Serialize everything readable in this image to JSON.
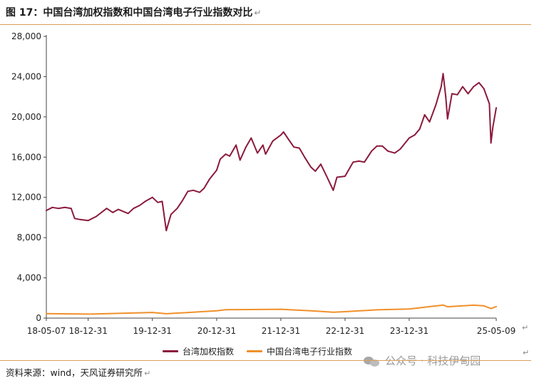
{
  "title": "图 17：中国台湾加权指数和中国台湾电子行业指数对比",
  "para_mark": "↵",
  "source": "资料来源：wind，天风证券研究所",
  "watermark": "公众号 · 科技伊甸园",
  "colors": {
    "accent_rule": "#d9a05b",
    "series1": "#8b1a3c",
    "series2": "#f0902a",
    "axis": "#444444"
  },
  "chart_data": {
    "type": "line",
    "title": "图 17：中国台湾加权指数和中国台湾电子行业指数对比",
    "xlabel": "",
    "ylabel": "",
    "ylim": [
      0,
      28000
    ],
    "yticks": [
      0,
      4000,
      8000,
      12000,
      16000,
      20000,
      24000,
      28000
    ],
    "ytick_labels": [
      "0",
      "4,000",
      "8,000",
      "12,000",
      "16,000",
      "20,000",
      "24,000",
      "28,000"
    ],
    "xlim": [
      "2018-05-07",
      "2025-05-09"
    ],
    "xticks": [
      "2018-05-07",
      "2018-12-31",
      "2019-12-31",
      "2020-12-31",
      "2021-12-31",
      "2022-12-31",
      "2023-12-31",
      "2025-05-09"
    ],
    "xtick_labels": [
      "18-05-07",
      "18-12-31",
      "19-12-31",
      "20-12-31",
      "21-12-31",
      "22-12-31",
      "23-12-31",
      "25-05-09"
    ],
    "grid": false,
    "legend_position": "bottom",
    "series": [
      {
        "name": "台湾加权指数",
        "color": "#8b1a3c",
        "points": [
          [
            "2018-05-07",
            10700
          ],
          [
            "2018-06-10",
            11000
          ],
          [
            "2018-07-15",
            10900
          ],
          [
            "2018-08-20",
            11000
          ],
          [
            "2018-09-25",
            10900
          ],
          [
            "2018-10-15",
            9900
          ],
          [
            "2018-11-15",
            9800
          ],
          [
            "2018-12-31",
            9700
          ],
          [
            "2019-02-15",
            10100
          ],
          [
            "2019-04-15",
            10900
          ],
          [
            "2019-05-20",
            10500
          ],
          [
            "2019-06-20",
            10800
          ],
          [
            "2019-08-15",
            10400
          ],
          [
            "2019-09-15",
            10900
          ],
          [
            "2019-10-20",
            11200
          ],
          [
            "2019-11-20",
            11600
          ],
          [
            "2019-12-31",
            12000
          ],
          [
            "2020-01-31",
            11500
          ],
          [
            "2020-02-25",
            11600
          ],
          [
            "2020-03-19",
            8700
          ],
          [
            "2020-04-15",
            10300
          ],
          [
            "2020-05-20",
            10900
          ],
          [
            "2020-06-20",
            11700
          ],
          [
            "2020-07-20",
            12600
          ],
          [
            "2020-08-20",
            12700
          ],
          [
            "2020-09-25",
            12500
          ],
          [
            "2020-10-20",
            12900
          ],
          [
            "2020-11-20",
            13800
          ],
          [
            "2020-12-31",
            14700
          ],
          [
            "2021-01-20",
            15800
          ],
          [
            "2021-02-20",
            16300
          ],
          [
            "2021-03-15",
            16100
          ],
          [
            "2021-04-20",
            17200
          ],
          [
            "2021-05-13",
            15700
          ],
          [
            "2021-06-15",
            17000
          ],
          [
            "2021-07-15",
            17900
          ],
          [
            "2021-08-20",
            16400
          ],
          [
            "2021-09-20",
            17200
          ],
          [
            "2021-10-05",
            16300
          ],
          [
            "2021-11-15",
            17600
          ],
          [
            "2021-12-31",
            18200
          ],
          [
            "2022-01-15",
            18500
          ],
          [
            "2022-02-15",
            17700
          ],
          [
            "2022-03-15",
            17000
          ],
          [
            "2022-04-15",
            16900
          ],
          [
            "2022-05-15",
            16000
          ],
          [
            "2022-06-20",
            15000
          ],
          [
            "2022-07-15",
            14600
          ],
          [
            "2022-08-15",
            15300
          ],
          [
            "2022-09-20",
            14000
          ],
          [
            "2022-10-25",
            12700
          ],
          [
            "2022-11-15",
            14000
          ],
          [
            "2022-12-31",
            14100
          ],
          [
            "2023-02-15",
            15500
          ],
          [
            "2023-03-20",
            15600
          ],
          [
            "2023-04-20",
            15500
          ],
          [
            "2023-05-31",
            16600
          ],
          [
            "2023-06-30",
            17100
          ],
          [
            "2023-07-31",
            17100
          ],
          [
            "2023-08-31",
            16600
          ],
          [
            "2023-10-10",
            16400
          ],
          [
            "2023-11-10",
            16800
          ],
          [
            "2023-12-31",
            17900
          ],
          [
            "2024-01-31",
            18200
          ],
          [
            "2024-02-29",
            18800
          ],
          [
            "2024-03-28",
            20200
          ],
          [
            "2024-04-25",
            19500
          ],
          [
            "2024-05-31",
            21200
          ],
          [
            "2024-06-30",
            23000
          ],
          [
            "2024-07-11",
            24300
          ],
          [
            "2024-07-26",
            22000
          ],
          [
            "2024-08-05",
            19800
          ],
          [
            "2024-08-30",
            22300
          ],
          [
            "2024-09-30",
            22200
          ],
          [
            "2024-10-30",
            23000
          ],
          [
            "2024-11-30",
            22300
          ],
          [
            "2024-12-31",
            23000
          ],
          [
            "2025-01-31",
            23400
          ],
          [
            "2025-02-28",
            22800
          ],
          [
            "2025-03-31",
            21300
          ],
          [
            "2025-04-09",
            17400
          ],
          [
            "2025-04-20",
            19000
          ],
          [
            "2025-05-09",
            20900
          ]
        ]
      },
      {
        "name": "中国台湾电子行业指数",
        "color": "#f0902a",
        "points": [
          [
            "2018-05-07",
            450
          ],
          [
            "2018-12-31",
            400
          ],
          [
            "2019-12-31",
            560
          ],
          [
            "2020-03-19",
            430
          ],
          [
            "2020-12-31",
            720
          ],
          [
            "2021-02-20",
            830
          ],
          [
            "2021-12-31",
            880
          ],
          [
            "2022-06-20",
            720
          ],
          [
            "2022-10-25",
            590
          ],
          [
            "2022-12-31",
            640
          ],
          [
            "2023-06-30",
            820
          ],
          [
            "2023-12-31",
            900
          ],
          [
            "2024-03-28",
            1080
          ],
          [
            "2024-07-11",
            1300
          ],
          [
            "2024-08-05",
            1130
          ],
          [
            "2024-12-31",
            1280
          ],
          [
            "2025-02-28",
            1220
          ],
          [
            "2025-04-09",
            950
          ],
          [
            "2025-05-09",
            1140
          ]
        ]
      }
    ]
  }
}
